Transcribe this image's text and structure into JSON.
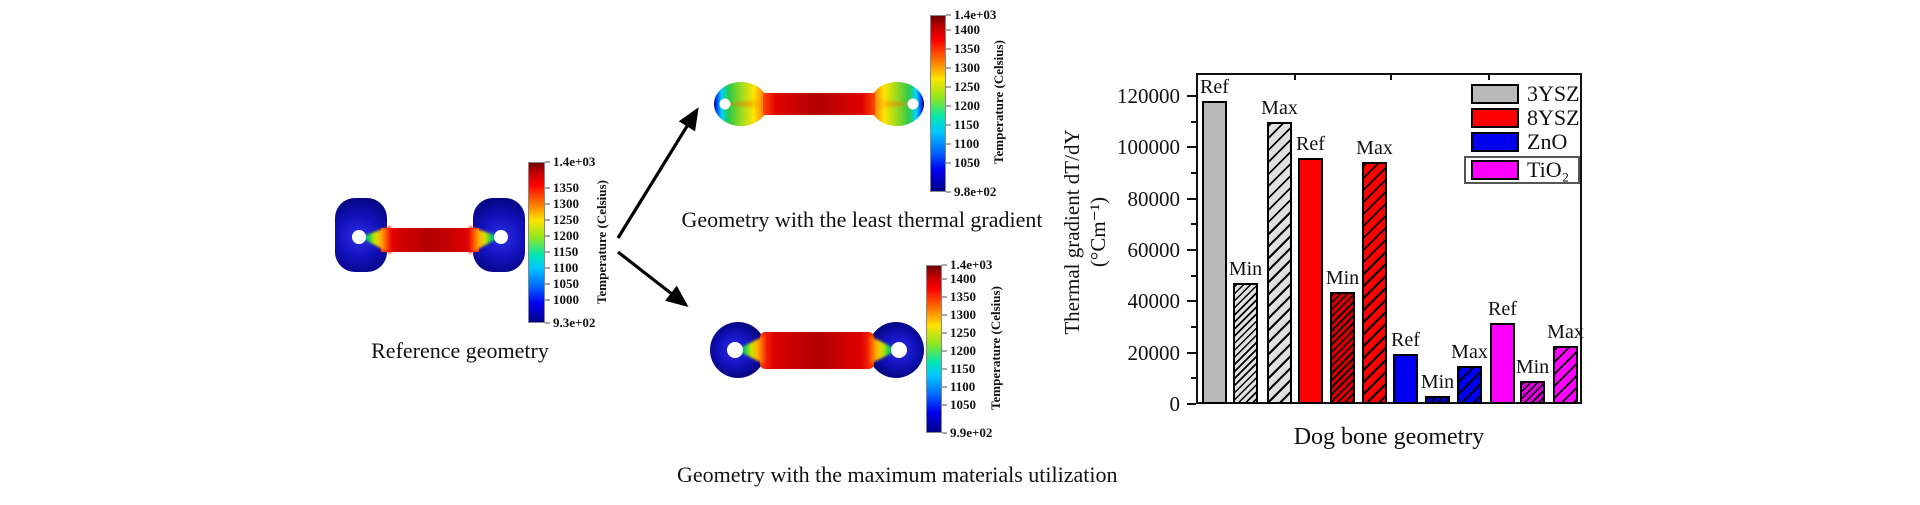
{
  "figure": {
    "background": "#ffffff",
    "captions": {
      "reference": "Reference geometry",
      "least": "Geometry with the least thermal gradient",
      "max": "Geometry with the maximum materials utilization"
    },
    "colorbars": [
      {
        "id": "ref",
        "top_label": "1.4e+03",
        "ticks": [
          1350,
          1300,
          1250,
          1200,
          1150,
          1100,
          1050,
          1000
        ],
        "bottom_label": "9.3e+02",
        "axis_label": "Temperature (Celsius)"
      },
      {
        "id": "least",
        "top_label": "1.4e+03",
        "ticks": [
          1400,
          1350,
          1300,
          1250,
          1200,
          1150,
          1100,
          1050
        ],
        "bottom_label": "9.8e+02",
        "axis_label": "Temperature (Celsius)"
      },
      {
        "id": "max",
        "top_label": "1.4e+03",
        "ticks": [
          1400,
          1350,
          1300,
          1250,
          1200,
          1150,
          1100,
          1050
        ],
        "bottom_label": "9.9e+02",
        "axis_label": "Temperature (Celsius)"
      }
    ]
  },
  "chart_data": {
    "type": "bar",
    "title": "",
    "xlabel": "Dog bone geometry",
    "ylabel_line1": "Thermal gradient dT/dY",
    "ylabel_line2": "(°Cm⁻¹)",
    "ylim": [
      0,
      129000
    ],
    "yticks": [
      0,
      20000,
      40000,
      60000,
      80000,
      100000,
      120000
    ],
    "minor_yticks": [
      10000,
      30000,
      50000,
      70000,
      90000,
      110000
    ],
    "grid": false,
    "legend_position": "top-right",
    "bars": [
      {
        "group": "3YSZ",
        "label": "Ref",
        "value": 118000,
        "style": "solid",
        "color": "#b9b9b9"
      },
      {
        "group": "3YSZ",
        "label": "Min",
        "value": 47000,
        "style": "hatch-dense",
        "color": "#e0e0e0"
      },
      {
        "group": "3YSZ",
        "label": "Max",
        "value": 110000,
        "style": "hatch",
        "color": "#e0e0e0"
      },
      {
        "group": "8YSZ",
        "label": "Ref",
        "value": 96000,
        "style": "solid",
        "color": "#ff0000"
      },
      {
        "group": "8YSZ",
        "label": "Min",
        "value": 43500,
        "style": "hatch-dense",
        "color": "#d40000"
      },
      {
        "group": "8YSZ",
        "label": "Max",
        "value": 94500,
        "style": "hatch",
        "color": "#ff0000"
      },
      {
        "group": "ZnO",
        "label": "Ref",
        "value": 19500,
        "style": "solid",
        "color": "#0000ee"
      },
      {
        "group": "ZnO",
        "label": "Min",
        "value": 3000,
        "style": "hatch-dense",
        "color": "#0000c8"
      },
      {
        "group": "ZnO",
        "label": "Max",
        "value": 15000,
        "style": "hatch",
        "color": "#0000ee"
      },
      {
        "group": "TiO2",
        "label": "Ref",
        "value": 31500,
        "style": "solid",
        "color": "#ff00ff"
      },
      {
        "group": "TiO2",
        "label": "Min",
        "value": 9000,
        "style": "hatch-dense",
        "color": "#dd00dd"
      },
      {
        "group": "TiO2",
        "label": "Max",
        "value": 22500,
        "style": "hatch",
        "color": "#ff00ff"
      }
    ],
    "legend": [
      {
        "label": "3YSZ",
        "color": "#b9b9b9",
        "boxed": false
      },
      {
        "label": "8YSZ",
        "color": "#ff0000",
        "boxed": false
      },
      {
        "label": "ZnO",
        "color": "#0000ee",
        "boxed": false
      },
      {
        "label": "TiO₂",
        "color": "#ff00ff",
        "boxed": true
      }
    ]
  }
}
